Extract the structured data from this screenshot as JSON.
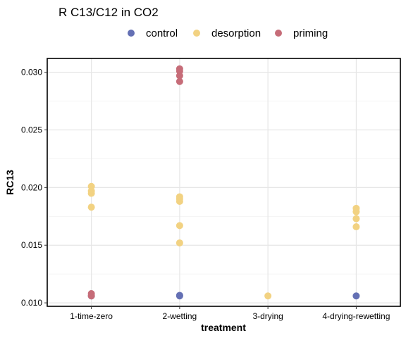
{
  "chart_data": {
    "type": "scatter",
    "title": "R C13/C12 in CO2",
    "xlabel": "treatment",
    "ylabel": "RC13",
    "categories": [
      "1-time-zero",
      "2-wetting",
      "3-drying",
      "4-drying-rewetting"
    ],
    "ylim": [
      0.0097,
      0.0312
    ],
    "yticks": [
      0.01,
      0.015,
      0.02,
      0.025,
      0.03
    ],
    "ytick_labels": [
      "0.010",
      "0.015",
      "0.020",
      "0.025",
      "0.030"
    ],
    "grid": true,
    "legend_position": "top",
    "series": [
      {
        "name": "control",
        "color": "#6470b4",
        "points": [
          {
            "category": "1-time-zero",
            "y": 0.0106
          },
          {
            "category": "2-wetting",
            "y": 0.0106
          },
          {
            "category": "2-wetting",
            "y": 0.01065
          },
          {
            "category": "4-drying-rewetting",
            "y": 0.0106
          }
        ]
      },
      {
        "name": "desorption",
        "color": "#f2d282",
        "points": [
          {
            "category": "1-time-zero",
            "y": 0.0201
          },
          {
            "category": "1-time-zero",
            "y": 0.0197
          },
          {
            "category": "1-time-zero",
            "y": 0.0195
          },
          {
            "category": "1-time-zero",
            "y": 0.0183
          },
          {
            "category": "2-wetting",
            "y": 0.0192
          },
          {
            "category": "2-wetting",
            "y": 0.019
          },
          {
            "category": "2-wetting",
            "y": 0.0188
          },
          {
            "category": "2-wetting",
            "y": 0.0167
          },
          {
            "category": "2-wetting",
            "y": 0.0152
          },
          {
            "category": "3-drying",
            "y": 0.0106
          },
          {
            "category": "4-drying-rewetting",
            "y": 0.0182
          },
          {
            "category": "4-drying-rewetting",
            "y": 0.0179
          },
          {
            "category": "4-drying-rewetting",
            "y": 0.0173
          },
          {
            "category": "4-drying-rewetting",
            "y": 0.0166
          }
        ]
      },
      {
        "name": "priming",
        "color": "#c66c78",
        "points": [
          {
            "category": "1-time-zero",
            "y": 0.0108
          },
          {
            "category": "1-time-zero",
            "y": 0.0106
          },
          {
            "category": "2-wetting",
            "y": 0.0303
          },
          {
            "category": "2-wetting",
            "y": 0.0301
          },
          {
            "category": "2-wetting",
            "y": 0.0297
          },
          {
            "category": "2-wetting",
            "y": 0.0292
          }
        ]
      }
    ]
  }
}
